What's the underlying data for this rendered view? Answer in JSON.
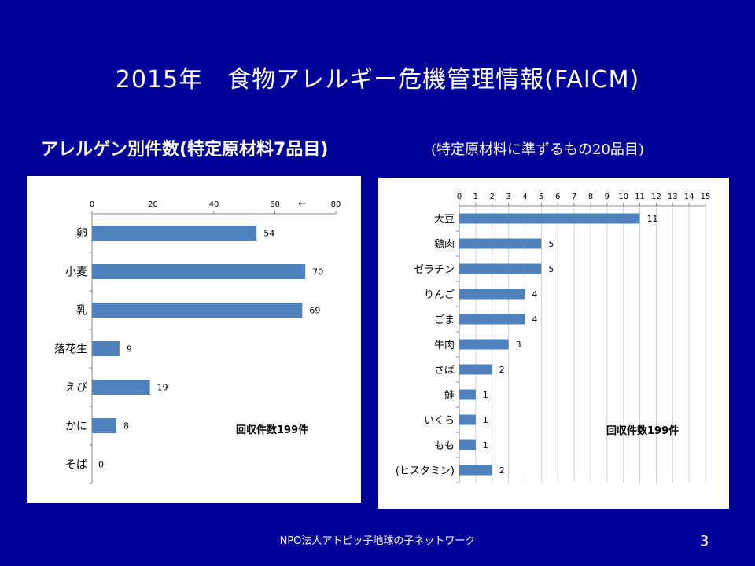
{
  "slide": {
    "title": "2015年　食物アレルギー危機管理情報(FAICM)",
    "subtitle_left": "アレルゲン別件数(特定原材料7品目)",
    "subtitle_right": "(特定原材料に準ずるもの20品目)",
    "footer": "NPO法人アトピッ子地球の子ネットワーク",
    "page_number": "3",
    "colors": {
      "background": "#000099",
      "bar": "#4F81BD",
      "panel": "#FFFFFF"
    }
  },
  "chart_data": [
    {
      "type": "bar",
      "orientation": "horizontal",
      "categories": [
        "卵",
        "小麦",
        "乳",
        "落花生",
        "えび",
        "かに",
        "そば"
      ],
      "values": [
        54,
        70,
        69,
        9,
        19,
        8,
        0
      ],
      "xlim": [
        0,
        80
      ],
      "ticks": [
        0,
        20,
        40,
        60,
        80
      ],
      "axis_position": "top",
      "extra_mark": "←",
      "annotation": "回収件数199件",
      "grid": false
    },
    {
      "type": "bar",
      "orientation": "horizontal",
      "categories": [
        "大豆",
        "鶏肉",
        "ゼラチン",
        "りんご",
        "ごま",
        "牛肉",
        "さば",
        "鮭",
        "いくら",
        "もも",
        "(ヒスタミン)"
      ],
      "values": [
        11,
        5,
        5,
        4,
        4,
        3,
        2,
        1,
        1,
        1,
        2
      ],
      "xlim": [
        0,
        15
      ],
      "ticks": [
        0,
        1,
        2,
        3,
        4,
        5,
        6,
        7,
        8,
        9,
        10,
        11,
        12,
        13,
        14,
        15
      ],
      "axis_position": "top",
      "annotation": "回収件数199件",
      "grid": true
    }
  ]
}
